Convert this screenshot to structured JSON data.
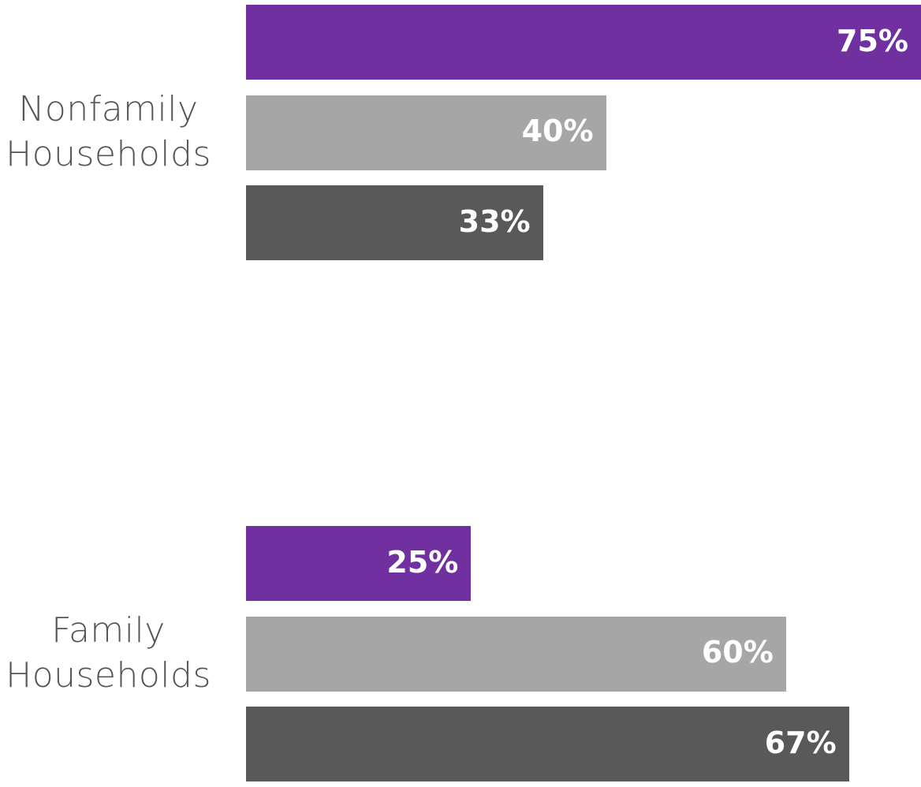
{
  "chart_data": {
    "type": "bar",
    "orientation": "horizontal",
    "categories": [
      [
        "Nonfamily",
        "Households"
      ],
      [
        "Family",
        "Households"
      ]
    ],
    "series": [
      {
        "values": [
          75,
          25
        ],
        "labels": [
          "75%",
          "25%"
        ],
        "color": "#7030a0"
      },
      {
        "values": [
          40,
          60
        ],
        "labels": [
          "40%",
          "60%"
        ],
        "color": "#a6a6a6"
      },
      {
        "values": [
          33,
          67
        ],
        "labels": [
          "33%",
          "67%"
        ],
        "color": "#595959"
      }
    ],
    "title": "",
    "xlabel": "",
    "ylabel": "",
    "xlim": [
      0,
      75
    ],
    "grid": false,
    "legend": false
  }
}
